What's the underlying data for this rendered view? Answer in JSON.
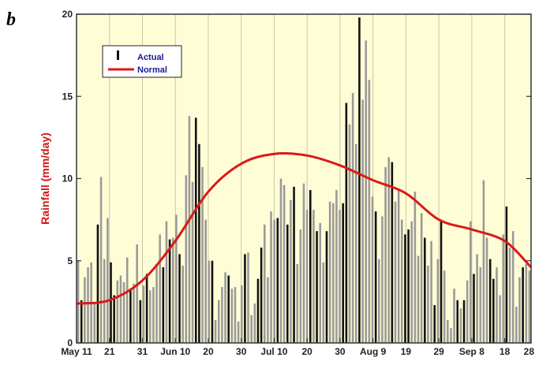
{
  "panel_label": "b",
  "chart_data": {
    "type": "bar",
    "title": "",
    "xlabel": "",
    "ylabel": "Rainfall (mm/day)",
    "ylim": [
      0,
      20
    ],
    "yticks": [
      0,
      5,
      10,
      15,
      20
    ],
    "x_range_days": [
      0,
      138
    ],
    "xticks": [
      {
        "day": 0,
        "label": "May 11"
      },
      {
        "day": 10,
        "label": "21"
      },
      {
        "day": 20,
        "label": "31"
      },
      {
        "day": 30,
        "label": "Jun 10"
      },
      {
        "day": 40,
        "label": "20"
      },
      {
        "day": 50,
        "label": "30"
      },
      {
        "day": 60,
        "label": "Jul 10"
      },
      {
        "day": 70,
        "label": "20"
      },
      {
        "day": 80,
        "label": "30"
      },
      {
        "day": 90,
        "label": "Aug 9"
      },
      {
        "day": 100,
        "label": "19"
      },
      {
        "day": 110,
        "label": "29"
      },
      {
        "day": 120,
        "label": "Sep 8"
      },
      {
        "day": 130,
        "label": "18"
      },
      {
        "day": 138,
        "label": "28"
      }
    ],
    "grid": "vertical",
    "legend_position": "top-left",
    "colors": {
      "plot_bg": "#fffdd6",
      "grid": "#c9c6a6",
      "normal": "#d91a1a",
      "actual_dark": "#111111",
      "actual_light": "#9a9a9a",
      "legend_text": "#1a1a9a"
    },
    "series": [
      {
        "name": "Actual",
        "kind": "bars",
        "values": [
          5,
          2.6,
          4,
          4.6,
          4.9,
          2.4,
          7.2,
          10.1,
          5.1,
          7.6,
          4.9,
          2.9,
          3.8,
          4.1,
          3.7,
          5.2,
          3.3,
          3.6,
          6,
          2.6,
          3.5,
          4.2,
          3.2,
          3.4,
          4.8,
          6.6,
          4.6,
          7.4,
          6.3,
          6.4,
          7.8,
          5.4,
          4.7,
          10.2,
          13.8,
          9.8,
          13.7,
          12.1,
          10.7,
          7.5,
          5,
          5,
          1.4,
          2.6,
          3.4,
          4.3,
          4.1,
          3.3,
          3.4,
          1.3,
          3.5,
          5.4,
          5.5,
          1.7,
          2.4,
          3.9,
          5.8,
          7.2,
          4,
          8,
          7.5,
          7.6,
          10,
          9.6,
          7.2,
          8.7,
          9.5,
          4.8,
          6.9,
          9.7,
          8.1,
          9.3,
          8.1,
          6.8,
          7.3,
          4.9,
          6.8,
          8.6,
          8.5,
          9.3,
          8.1,
          8.5,
          14.6,
          13.3,
          15.2,
          12.1,
          19.8,
          14.8,
          18.4,
          16,
          8.9,
          8,
          5.1,
          7.7,
          10.7,
          11.3,
          11,
          8.6,
          9.4,
          7.5,
          6.6,
          6.9,
          7.4,
          9.2,
          5.3,
          7.9,
          6.4,
          4.7,
          6.2,
          2.3,
          5.1,
          7.5,
          4.4,
          1.4,
          0.9,
          3.3,
          2.6,
          2.1,
          2.6,
          3.8,
          7.4,
          4.2,
          5.4,
          4.6,
          9.9,
          6.4,
          5.1,
          3.9,
          4.6,
          2.9,
          6.6,
          8.3,
          5.8,
          6.8,
          2.2,
          4,
          4.6,
          4.8,
          4.4
        ]
      },
      {
        "name": "Normal",
        "kind": "line",
        "x": [
          0,
          10,
          20,
          30,
          40,
          50,
          60,
          70,
          80,
          90,
          100,
          110,
          120,
          130,
          138
        ],
        "y": [
          2.4,
          2.6,
          3.8,
          6.2,
          9.2,
          10.9,
          11.5,
          11.4,
          10.8,
          9.9,
          9.1,
          7.5,
          6.9,
          6.2,
          4.6
        ]
      }
    ]
  }
}
